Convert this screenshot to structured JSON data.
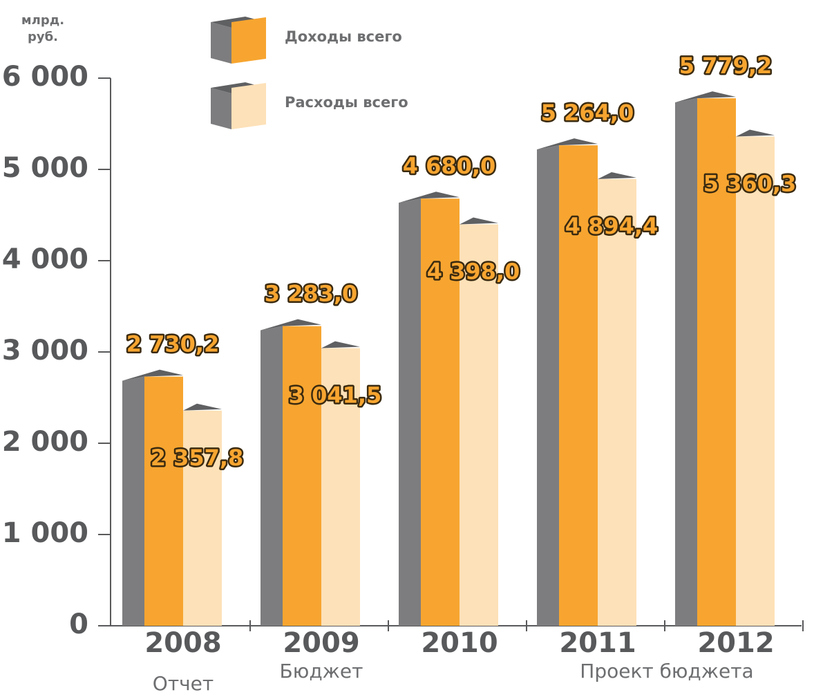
{
  "chart_data": {
    "type": "bar3d",
    "unit": [
      "млрд.",
      "руб."
    ],
    "categories": [
      "2008",
      "2009",
      "2010",
      "2011",
      "2012"
    ],
    "series": [
      {
        "name": "Доходы всего",
        "color": "#f7a530",
        "values": [
          2730.2,
          3283.0,
          4680.0,
          5264.0,
          5779.2
        ],
        "value_labels": [
          "2 730,2",
          "3 283,0",
          "4 680,0",
          "5 264,0",
          "5 779,2"
        ]
      },
      {
        "name": "Расходы всего",
        "color": "#fde1b8",
        "values": [
          2357.8,
          3041.5,
          4398.0,
          4894.4,
          5360.3
        ],
        "value_labels": [
          "2 357,8",
          "3 041,5",
          "4 398,0",
          "4 894,4",
          "5 360,3"
        ]
      }
    ],
    "ylim": [
      0,
      6000
    ],
    "yticks": [
      0,
      {
        "value": 1000,
        "label": "1 000"
      },
      {
        "value": 2000,
        "label": "2 000"
      },
      {
        "value": 3000,
        "label": "3 000"
      },
      {
        "value": 4000,
        "label": "4 000"
      },
      {
        "value": 5000,
        "label": "5 000"
      },
      {
        "value": 6000,
        "label": "6 000"
      }
    ],
    "annotations": [
      {
        "text": "Отчет",
        "category": "2008"
      },
      {
        "text": "Бюджет",
        "category": "2009"
      },
      {
        "text": "Проект бюджета",
        "category": "2011"
      }
    ]
  }
}
